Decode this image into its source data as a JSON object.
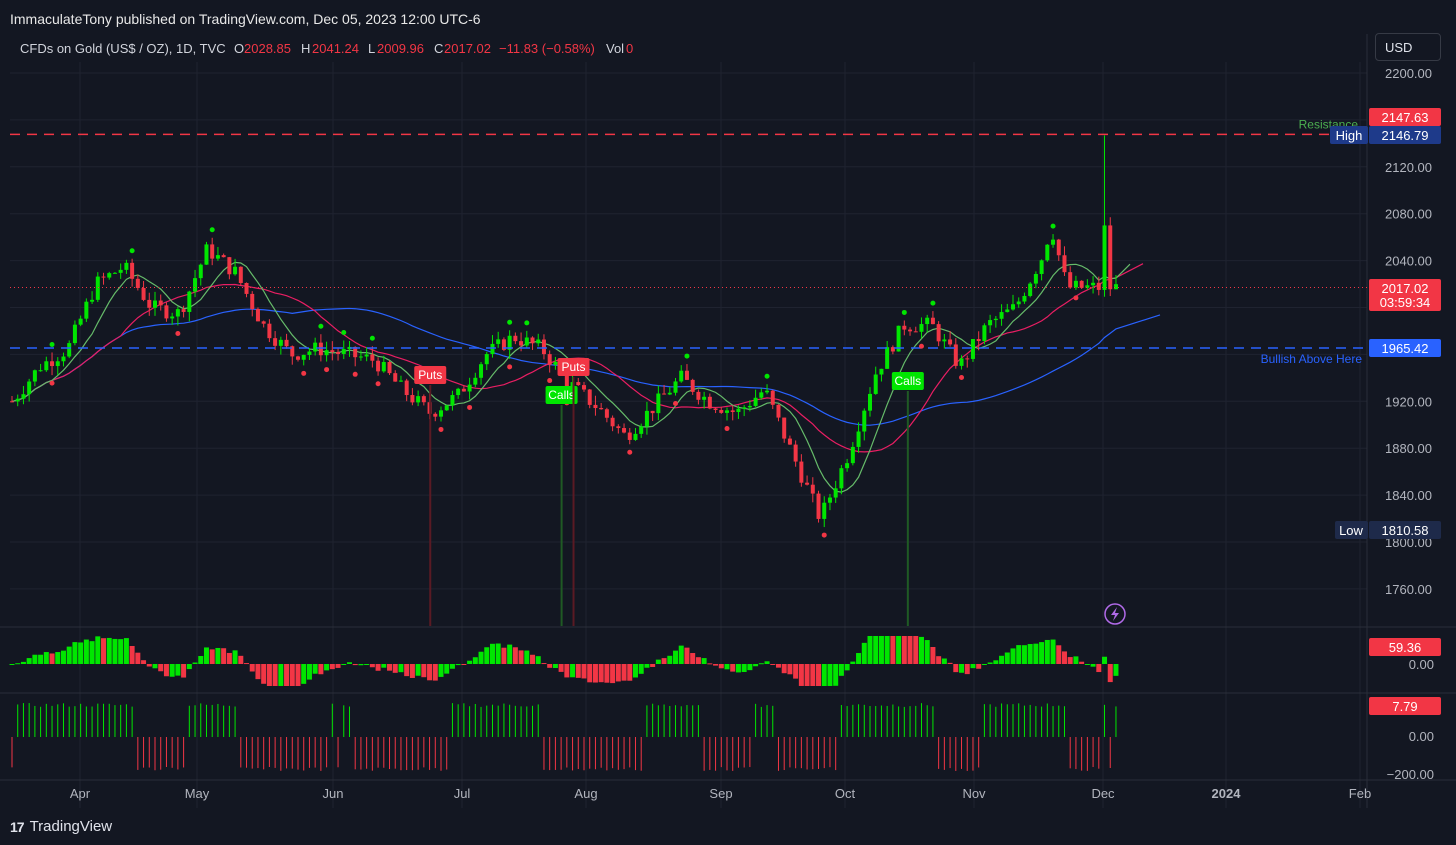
{
  "publisher": "ImmaculateTony published on TradingView.com, Dec 05, 2023 12:00 UTC-6",
  "legend": {
    "symbol": "CFDs on Gold (US$ / OZ), 1D, TVC",
    "o_label": "O",
    "o": "2028.85",
    "h_label": "H",
    "h": "2041.24",
    "l_label": "L",
    "l": "2009.96",
    "c_label": "C",
    "c": "2017.02",
    "change": "−11.83 (−0.58%)",
    "vol_label": "Vol",
    "vol": "0"
  },
  "currency": "USD",
  "footer_brand": "TradingView",
  "colors": {
    "bull": "#00e600",
    "bear": "#f23645",
    "background": "#131722",
    "ma_slow": "#2962ff",
    "ma_mid": "#e91e63",
    "ma_fast": "#66bb6a"
  },
  "chart_data": [
    {
      "type": "candlestick",
      "symbol": "CFDs on Gold (US$ / OZ)",
      "interval": "1D",
      "ylim": [
        1720,
        2230
      ],
      "y_ticks": [
        "2200.00",
        "2120.00",
        "2080.00",
        "2040.00",
        "1920.00",
        "1880.00",
        "1840.00",
        "1800.00",
        "1760.00"
      ],
      "x_ticks": [
        "Apr",
        "May",
        "Jun",
        "Jul",
        "Aug",
        "Sep",
        "Oct",
        "Nov",
        "Dec",
        "2024",
        "Feb"
      ],
      "grid": true,
      "closes_weekly_approx": [
        {
          "date": "2023-03-15",
          "close": 1920
        },
        {
          "date": "2023-03-22",
          "close": 1950
        },
        {
          "date": "2023-03-29",
          "close": 1965
        },
        {
          "date": "2023-04-05",
          "close": 2020
        },
        {
          "date": "2023-04-12",
          "close": 2035
        },
        {
          "date": "2023-04-19",
          "close": 2000
        },
        {
          "date": "2023-04-26",
          "close": 1995
        },
        {
          "date": "2023-05-03",
          "close": 2050
        },
        {
          "date": "2023-05-10",
          "close": 2030
        },
        {
          "date": "2023-05-17",
          "close": 1985
        },
        {
          "date": "2023-05-24",
          "close": 1960
        },
        {
          "date": "2023-05-31",
          "close": 1965
        },
        {
          "date": "2023-06-07",
          "close": 1960
        },
        {
          "date": "2023-06-14",
          "close": 1955
        },
        {
          "date": "2023-06-21",
          "close": 1930
        },
        {
          "date": "2023-06-28",
          "close": 1910
        },
        {
          "date": "2023-07-05",
          "close": 1925
        },
        {
          "date": "2023-07-12",
          "close": 1960
        },
        {
          "date": "2023-07-19",
          "close": 1975
        },
        {
          "date": "2023-07-26",
          "close": 1965
        },
        {
          "date": "2023-08-02",
          "close": 1935
        },
        {
          "date": "2023-08-09",
          "close": 1915
        },
        {
          "date": "2023-08-16",
          "close": 1890
        },
        {
          "date": "2023-08-23",
          "close": 1915
        },
        {
          "date": "2023-08-30",
          "close": 1940
        },
        {
          "date": "2023-09-06",
          "close": 1920
        },
        {
          "date": "2023-09-13",
          "close": 1910
        },
        {
          "date": "2023-09-20",
          "close": 1930
        },
        {
          "date": "2023-09-27",
          "close": 1875
        },
        {
          "date": "2023-10-04",
          "close": 1820
        },
        {
          "date": "2023-10-11",
          "close": 1875
        },
        {
          "date": "2023-10-18",
          "close": 1945
        },
        {
          "date": "2023-10-25",
          "close": 1985
        },
        {
          "date": "2023-11-01",
          "close": 1985
        },
        {
          "date": "2023-11-08",
          "close": 1950
        },
        {
          "date": "2023-11-15",
          "close": 1985
        },
        {
          "date": "2023-11-22",
          "close": 2000
        },
        {
          "date": "2023-11-29",
          "close": 2045
        },
        {
          "date": "2023-12-01",
          "close": 2070
        },
        {
          "date": "2023-12-04",
          "close": 2030
        },
        {
          "date": "2023-12-05",
          "close": 2017.02
        }
      ],
      "levels": [
        {
          "name": "Resistance",
          "value": 2147.63
        },
        {
          "name": "Bullish Above Here",
          "value": 1965.42
        }
      ],
      "markers": [
        {
          "label": "High",
          "value": 2146.79
        },
        {
          "label": "Low",
          "value": 1810.58
        }
      ],
      "last_price": "2017.02",
      "countdown": "03:59:34",
      "signals": [
        {
          "label": "Puts",
          "date": "2023-06-28"
        },
        {
          "label": "Calls",
          "date": "2023-07-31"
        },
        {
          "label": "Puts",
          "date": "2023-08-03"
        },
        {
          "label": "Calls",
          "date": "2023-10-26"
        }
      ],
      "price_labels": [
        {
          "text": "2147.63",
          "value": 2147.63,
          "kind": "resistance"
        },
        {
          "text": "2146.79",
          "value": 2146.79,
          "kind": "high"
        },
        {
          "text": "2017.02",
          "value": 2017.02,
          "kind": "last"
        },
        {
          "text": "1965.42",
          "value": 1965.42,
          "kind": "bullish"
        },
        {
          "text": "1810.58",
          "value": 1810.58,
          "kind": "low"
        }
      ]
    },
    {
      "type": "histogram",
      "name": "oscillator 1",
      "last_value": "59.36",
      "y_ticks": [
        "0.00"
      ]
    },
    {
      "type": "histogram",
      "name": "oscillator 2",
      "last_value": "7.79",
      "y_ticks": [
        "0.00",
        "−200.00"
      ]
    }
  ]
}
